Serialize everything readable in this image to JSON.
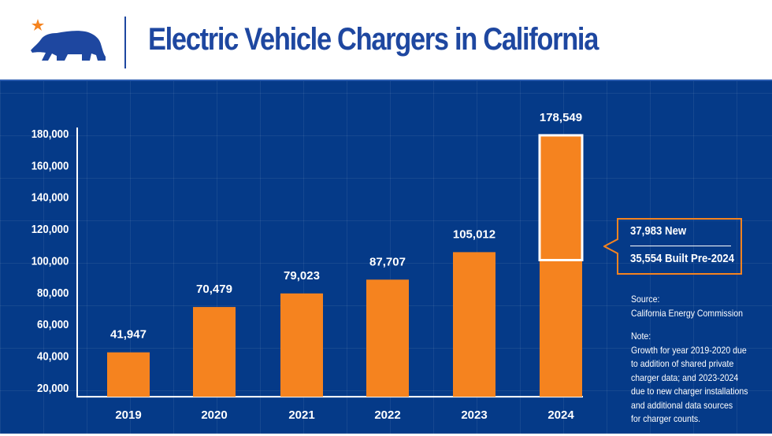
{
  "header": {
    "title": "Electric Vehicle Chargers in California",
    "logo": "California bear with star"
  },
  "colors": {
    "background": "#053a88",
    "bar": "#f5831f",
    "title": "#1e47a0",
    "star": "#f5831f"
  },
  "chart_data": {
    "type": "bar",
    "categories": [
      "2019",
      "2020",
      "2021",
      "2022",
      "2023",
      "2024"
    ],
    "values": [
      41947,
      70479,
      79023,
      87707,
      105012,
      178549
    ],
    "value_labels": [
      "41,947",
      "70,479",
      "79,023",
      "87,707",
      "105,012",
      "178,549"
    ],
    "yticks": [
      "20,000",
      "40,000",
      "60,000",
      "80,000",
      "100,000",
      "120,000",
      "140,000",
      "160,000",
      "180,000"
    ],
    "ytick_values": [
      20000,
      40000,
      60000,
      80000,
      100000,
      120000,
      140000,
      160000,
      180000
    ],
    "ylim": [
      14000,
      180000
    ],
    "grid": true,
    "highlight": {
      "category": "2024",
      "from": 100000,
      "to": 178549
    }
  },
  "callout": {
    "line1": "37,983 New",
    "line2": "35,554 Built Pre-2024"
  },
  "source": {
    "label": "Source:",
    "text": "California Energy Commission"
  },
  "note": {
    "label": "Note:",
    "lines": [
      "Growth for year 2019-2020 due",
      "to addition of shared private",
      "charger data; and 2023-2024",
      "due to new charger installations",
      "and additional data sources",
      "for charger counts."
    ]
  }
}
